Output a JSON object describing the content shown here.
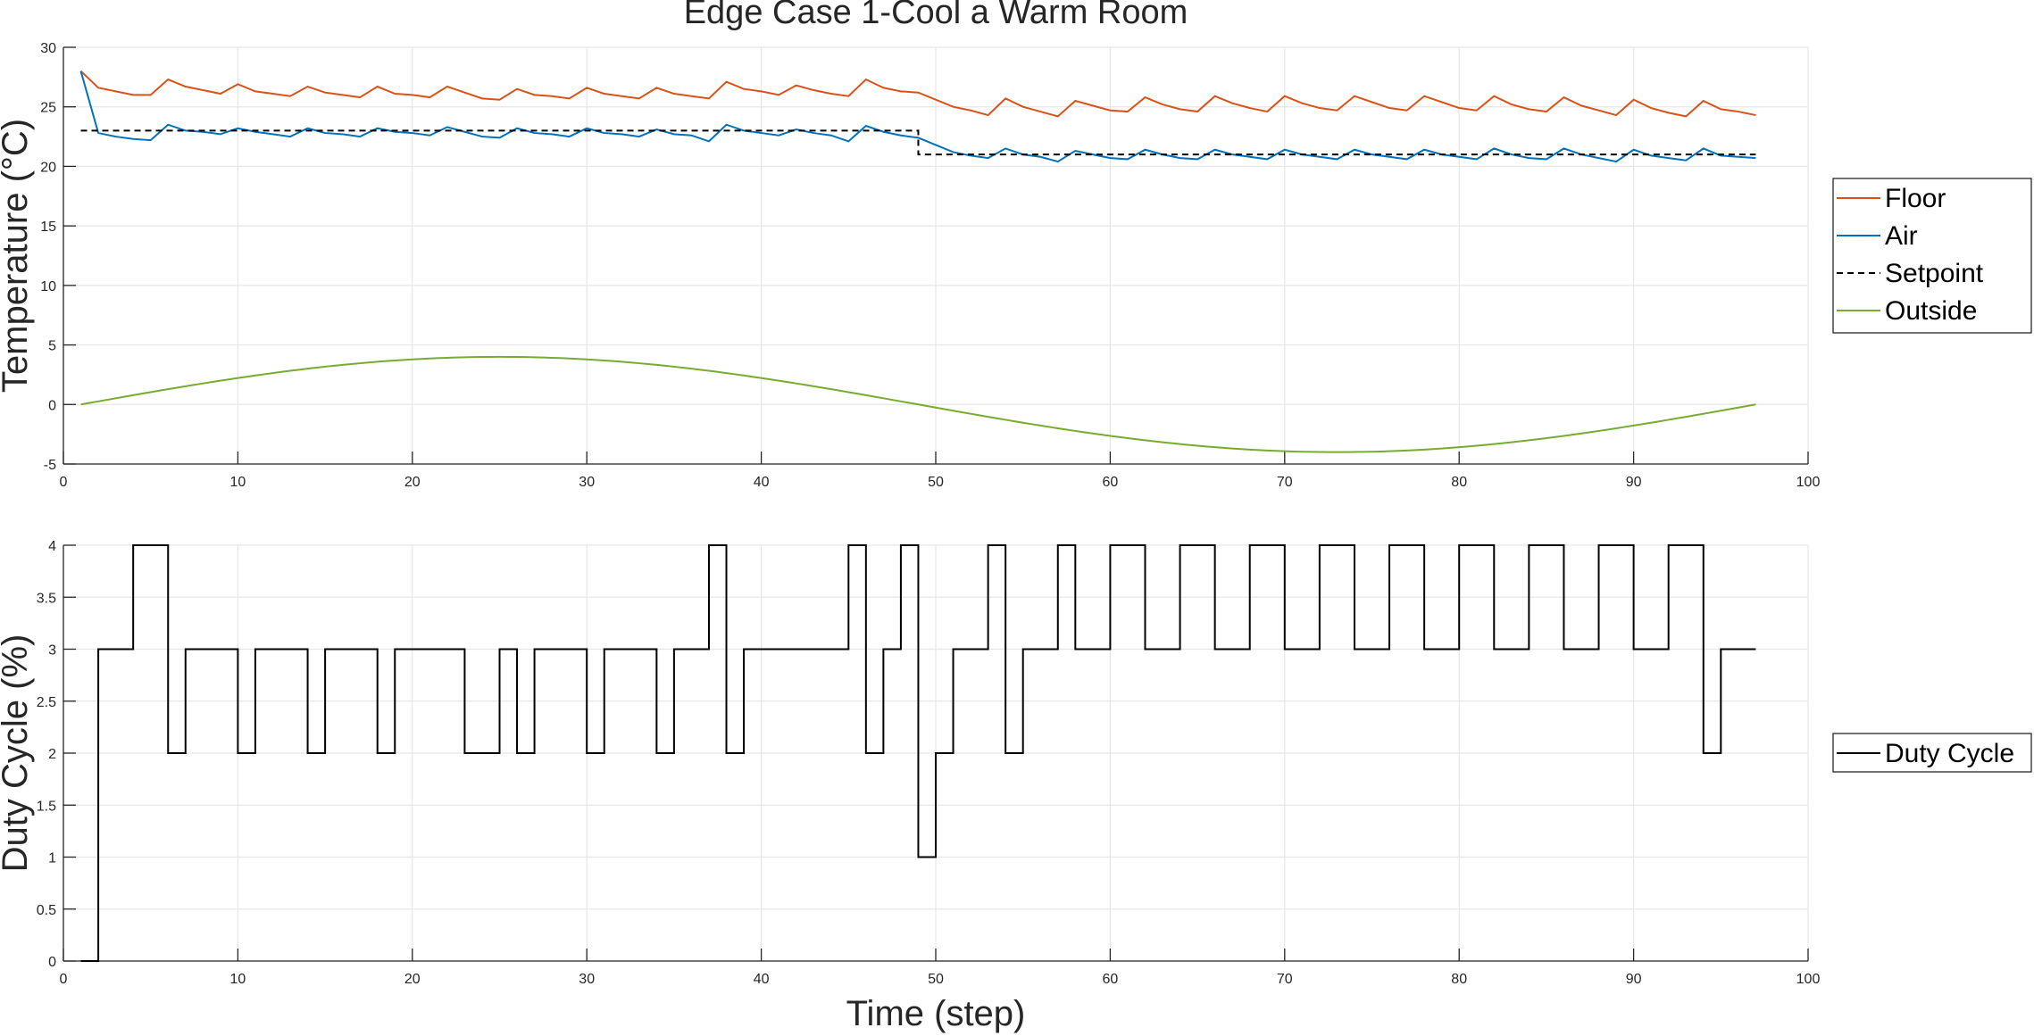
{
  "title": "Edge Case 1-Cool a Warm Room",
  "colors": {
    "floor": "#D95319",
    "air": "#0072BD",
    "setpoint": "#000000",
    "outside": "#77AC30",
    "duty": "#000000"
  },
  "chart_data": [
    {
      "type": "line",
      "title": "Edge Case 1-Cool a Warm Room",
      "xlabel": "",
      "ylabel": "Temperature (°C)",
      "xlim": [
        0,
        100
      ],
      "ylim": [
        -5,
        30
      ],
      "xticks": [
        "0",
        "10",
        "20",
        "30",
        "40",
        "50",
        "60",
        "70",
        "80",
        "90",
        "100"
      ],
      "yticks": [
        "-5",
        "0",
        "5",
        "10",
        "15",
        "20",
        "25",
        "30"
      ],
      "grid": true,
      "legend_position": "outside-right",
      "series": [
        {
          "name": "Floor",
          "x": [
            1,
            2,
            3,
            4,
            5,
            6,
            7,
            8,
            9,
            10,
            11,
            12,
            13,
            14,
            15,
            16,
            17,
            18,
            19,
            20,
            21,
            22,
            23,
            24,
            25,
            26,
            27,
            28,
            29,
            30,
            31,
            32,
            33,
            34,
            35,
            36,
            37,
            38,
            39,
            40,
            41,
            42,
            43,
            44,
            45,
            46,
            47,
            48,
            49,
            50,
            51,
            52,
            53,
            54,
            55,
            56,
            57,
            58,
            59,
            60,
            61,
            62,
            63,
            64,
            65,
            66,
            67,
            68,
            69,
            70,
            71,
            72,
            73,
            74,
            75,
            76,
            77,
            78,
            79,
            80,
            81,
            82,
            83,
            84,
            85,
            86,
            87,
            88,
            89,
            90,
            91,
            92,
            93,
            94,
            95,
            96,
            97
          ],
          "y": [
            28.0,
            26.6,
            26.3,
            26.0,
            26.0,
            27.3,
            26.7,
            26.4,
            26.1,
            26.9,
            26.3,
            26.1,
            25.9,
            26.7,
            26.2,
            26.0,
            25.8,
            26.7,
            26.1,
            26.0,
            25.8,
            26.7,
            26.2,
            25.7,
            25.6,
            26.5,
            26.0,
            25.9,
            25.7,
            26.6,
            26.1,
            25.9,
            25.7,
            26.6,
            26.1,
            25.9,
            25.7,
            27.1,
            26.5,
            26.3,
            26.0,
            26.8,
            26.4,
            26.1,
            25.9,
            27.3,
            26.6,
            26.3,
            26.2,
            25.6,
            25.0,
            24.7,
            24.3,
            25.7,
            25.0,
            24.6,
            24.2,
            25.5,
            25.1,
            24.7,
            24.6,
            25.8,
            25.2,
            24.8,
            24.6,
            25.9,
            25.3,
            24.9,
            24.6,
            25.9,
            25.3,
            24.9,
            24.7,
            25.9,
            25.4,
            24.9,
            24.7,
            25.9,
            25.4,
            24.9,
            24.7,
            25.9,
            25.2,
            24.8,
            24.6,
            25.8,
            25.1,
            24.7,
            24.3,
            25.6,
            24.9,
            24.5,
            24.2,
            25.5,
            24.8,
            24.6,
            24.3
          ]
        },
        {
          "name": "Air",
          "x": [
            1,
            2,
            3,
            4,
            5,
            6,
            7,
            8,
            9,
            10,
            11,
            12,
            13,
            14,
            15,
            16,
            17,
            18,
            19,
            20,
            21,
            22,
            23,
            24,
            25,
            26,
            27,
            28,
            29,
            30,
            31,
            32,
            33,
            34,
            35,
            36,
            37,
            38,
            39,
            40,
            41,
            42,
            43,
            44,
            45,
            46,
            47,
            48,
            49,
            50,
            51,
            52,
            53,
            54,
            55,
            56,
            57,
            58,
            59,
            60,
            61,
            62,
            63,
            64,
            65,
            66,
            67,
            68,
            69,
            70,
            71,
            72,
            73,
            74,
            75,
            76,
            77,
            78,
            79,
            80,
            81,
            82,
            83,
            84,
            85,
            86,
            87,
            88,
            89,
            90,
            91,
            92,
            93,
            94,
            95,
            96,
            97
          ],
          "y": [
            28.0,
            22.8,
            22.5,
            22.3,
            22.2,
            23.5,
            23.0,
            22.9,
            22.7,
            23.2,
            22.9,
            22.7,
            22.5,
            23.2,
            22.8,
            22.7,
            22.5,
            23.2,
            22.9,
            22.8,
            22.6,
            23.3,
            22.9,
            22.5,
            22.4,
            23.2,
            22.8,
            22.7,
            22.5,
            23.2,
            22.8,
            22.7,
            22.5,
            23.1,
            22.7,
            22.6,
            22.1,
            23.5,
            23.0,
            22.8,
            22.6,
            23.1,
            22.8,
            22.6,
            22.1,
            23.4,
            22.9,
            22.6,
            22.4,
            21.8,
            21.2,
            20.9,
            20.7,
            21.5,
            21.0,
            20.8,
            20.4,
            21.3,
            21.0,
            20.7,
            20.6,
            21.4,
            21.0,
            20.7,
            20.6,
            21.4,
            21.0,
            20.8,
            20.6,
            21.4,
            21.0,
            20.8,
            20.6,
            21.4,
            21.0,
            20.8,
            20.6,
            21.4,
            21.0,
            20.8,
            20.6,
            21.5,
            21.0,
            20.7,
            20.6,
            21.5,
            21.0,
            20.7,
            20.4,
            21.4,
            20.9,
            20.7,
            20.5,
            21.5,
            20.9,
            20.8,
            20.7
          ]
        },
        {
          "name": "Setpoint",
          "style": "dashed",
          "x": [
            1,
            49,
            49,
            97
          ],
          "y": [
            23,
            23,
            21,
            21
          ]
        },
        {
          "name": "Outside",
          "function": "4*sin(2*pi*(x-1)/96)",
          "x": [
            1,
            5,
            9,
            13,
            17,
            21,
            25,
            29,
            33,
            37,
            41,
            45,
            49,
            53,
            57,
            61,
            65,
            69,
            73,
            77,
            81,
            85,
            89,
            93,
            97
          ],
          "y": [
            0,
            1.04,
            2.0,
            2.83,
            3.46,
            3.86,
            4.0,
            3.86,
            3.46,
            2.83,
            2.0,
            1.04,
            0,
            -1.04,
            -2.0,
            -2.83,
            -3.46,
            -3.86,
            -4.0,
            -3.86,
            -3.46,
            -2.83,
            -2.0,
            -1.04,
            0
          ]
        }
      ]
    },
    {
      "type": "line",
      "title": "",
      "xlabel": "Time (step)",
      "ylabel": "Duty Cycle (%)",
      "xlim": [
        0,
        100
      ],
      "ylim": [
        0,
        4
      ],
      "xticks": [
        "0",
        "10",
        "20",
        "30",
        "40",
        "50",
        "60",
        "70",
        "80",
        "90",
        "100"
      ],
      "yticks": [
        "0",
        "0.5",
        "1",
        "1.5",
        "2",
        "2.5",
        "3",
        "3.5",
        "4"
      ],
      "grid": true,
      "legend_position": "outside-right",
      "series": [
        {
          "name": "Duty Cycle",
          "style": "stairs",
          "x": [
            1,
            2,
            3,
            4,
            5,
            6,
            7,
            8,
            9,
            10,
            11,
            12,
            13,
            14,
            15,
            16,
            17,
            18,
            19,
            20,
            21,
            22,
            23,
            24,
            25,
            26,
            27,
            28,
            29,
            30,
            31,
            32,
            33,
            34,
            35,
            36,
            37,
            38,
            39,
            40,
            41,
            42,
            43,
            44,
            45,
            46,
            47,
            48,
            49,
            50,
            51,
            52,
            53,
            54,
            55,
            56,
            57,
            58,
            59,
            60,
            61,
            62,
            63,
            64,
            65,
            66,
            67,
            68,
            69,
            70,
            71,
            72,
            73,
            74,
            75,
            76,
            77,
            78,
            79,
            80,
            81,
            82,
            83,
            84,
            85,
            86,
            87,
            88,
            89,
            90,
            91,
            92,
            93,
            94,
            95,
            96
          ],
          "y": [
            0,
            3,
            3,
            4,
            4,
            2,
            3,
            3,
            3,
            2,
            3,
            3,
            3,
            2,
            3,
            3,
            3,
            2,
            3,
            3,
            3,
            3,
            2,
            2,
            3,
            2,
            3,
            3,
            3,
            2,
            3,
            3,
            3,
            2,
            3,
            3,
            4,
            2,
            3,
            3,
            3,
            3,
            3,
            3,
            4,
            2,
            3,
            4,
            1,
            2,
            3,
            3,
            4,
            2,
            3,
            3,
            4,
            3,
            3,
            4,
            4,
            3,
            3,
            4,
            4,
            3,
            3,
            4,
            4,
            3,
            3,
            4,
            4,
            3,
            3,
            4,
            4,
            3,
            3,
            4,
            4,
            3,
            3,
            4,
            4,
            3,
            3,
            4,
            4,
            3,
            3,
            4,
            4,
            2,
            3,
            3
          ]
        }
      ]
    }
  ]
}
